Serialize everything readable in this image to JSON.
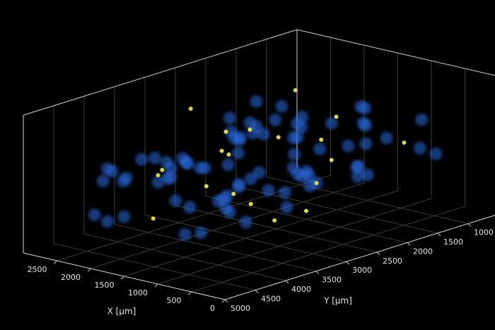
{
  "chart_data": {
    "type": "scatter3d",
    "xlabel": "X [μm]",
    "ylabel": "Y [μm]",
    "xlim": [
      0,
      3000
    ],
    "ylim": [
      500,
      5000
    ],
    "zlim": [
      0,
      1
    ],
    "xticks": [
      0,
      500,
      1000,
      1500,
      2000,
      2500
    ],
    "yticks": [
      1000,
      1500,
      2000,
      2500,
      3000,
      3500,
      4000,
      4500,
      5000
    ],
    "grid": true,
    "series": [
      {
        "color": "#2a6be0",
        "x": [
          300,
          800,
          1200,
          1600,
          2000,
          2400,
          2700,
          500,
          1000,
          1500,
          1800,
          2200,
          2600,
          400,
          900,
          1300,
          1700,
          2100,
          2500,
          700,
          1100,
          1400,
          1900,
          2300,
          600,
          1000,
          1600,
          2000,
          2400,
          800,
          1200,
          1500,
          1800,
          2200,
          2600,
          900,
          1300,
          1700,
          2100,
          500,
          300,
          700,
          1100,
          1500,
          1900,
          2300,
          2700,
          1000,
          1400,
          1800,
          2200,
          600,
          1000,
          1400,
          1800,
          2200,
          2500,
          1200,
          1600,
          2000,
          400,
          800,
          1200,
          1600,
          2000,
          2400,
          2800,
          900,
          1300,
          1700,
          2100,
          2500,
          1100,
          1500,
          1900,
          2300,
          700,
          1300,
          1700,
          2100
        ],
        "y": [
          1200,
          1800,
          2400,
          3000,
          3600,
          4200,
          1500,
          2100,
          2700,
          3300,
          3900,
          4500,
          1300,
          1900,
          2500,
          3100,
          3700,
          4300,
          1600,
          2200,
          2800,
          3400,
          4000,
          4600,
          1100,
          1700,
          2300,
          2900,
          3500,
          4100,
          1400,
          2000,
          2600,
          3200,
          3800,
          4400,
          1250,
          1850,
          2450,
          3050,
          3650,
          4250,
          1550,
          2150,
          2750,
          3350,
          3950,
          4550,
          1150,
          1750,
          2350,
          2950,
          3550,
          4150,
          1450,
          2050,
          2650,
          3250,
          3850,
          4450,
          1350,
          1950,
          2550,
          3150,
          3750,
          4350,
          1650,
          2250,
          2850,
          3450,
          4050,
          1050,
          1600,
          2200,
          2800,
          3400,
          4000,
          3000,
          2000,
          2600
        ],
        "z": [
          0.5,
          0.6,
          0.4,
          0.7,
          0.3,
          0.55,
          0.65,
          0.45,
          0.75,
          0.35,
          0.6,
          0.25,
          0.5,
          0.7,
          0.4,
          0.8,
          0.3,
          0.55,
          0.45,
          0.65,
          0.35,
          0.6,
          0.5,
          0.3,
          0.7,
          0.4,
          0.85,
          0.2,
          0.55,
          0.45,
          0.65,
          0.35,
          0.75,
          0.5,
          0.4,
          0.3,
          0.6,
          0.7,
          0.25,
          0.5,
          0.45,
          0.55,
          0.8,
          0.35,
          0.65,
          0.4,
          0.5,
          0.3,
          0.7,
          0.6,
          0.45,
          0.55,
          0.25,
          0.75,
          0.4,
          0.6,
          0.35,
          0.5,
          0.65,
          0.3,
          0.55,
          0.45,
          0.7,
          0.2,
          0.6,
          0.5,
          0.4,
          0.8,
          0.35,
          0.55,
          0.65,
          0.45,
          0.3,
          0.5,
          0.7,
          0.4,
          0.6,
          0.5,
          0.35,
          0.75
        ]
      },
      {
        "color": "#e6e04a",
        "x": [
          500,
          900,
          1300,
          1700,
          2100,
          2500,
          700,
          1100,
          1500,
          1900,
          2300,
          2700,
          600,
          1000,
          1400,
          1800,
          2200,
          800,
          1600,
          2400
        ],
        "y": [
          1500,
          2500,
          3500,
          4300,
          1800,
          2800,
          3800,
          2200,
          3200,
          4000,
          1300,
          2000,
          3000,
          4200,
          1700,
          2600,
          3600,
          3300,
          1400,
          2400
        ],
        "z": [
          0.6,
          0.4,
          0.7,
          0.3,
          0.5,
          0.8,
          0.45,
          0.65,
          0.35,
          0.55,
          0.75,
          0.5,
          0.3,
          0.6,
          0.4,
          0.7,
          0.5,
          0.25,
          0.65,
          0.45
        ]
      }
    ]
  }
}
